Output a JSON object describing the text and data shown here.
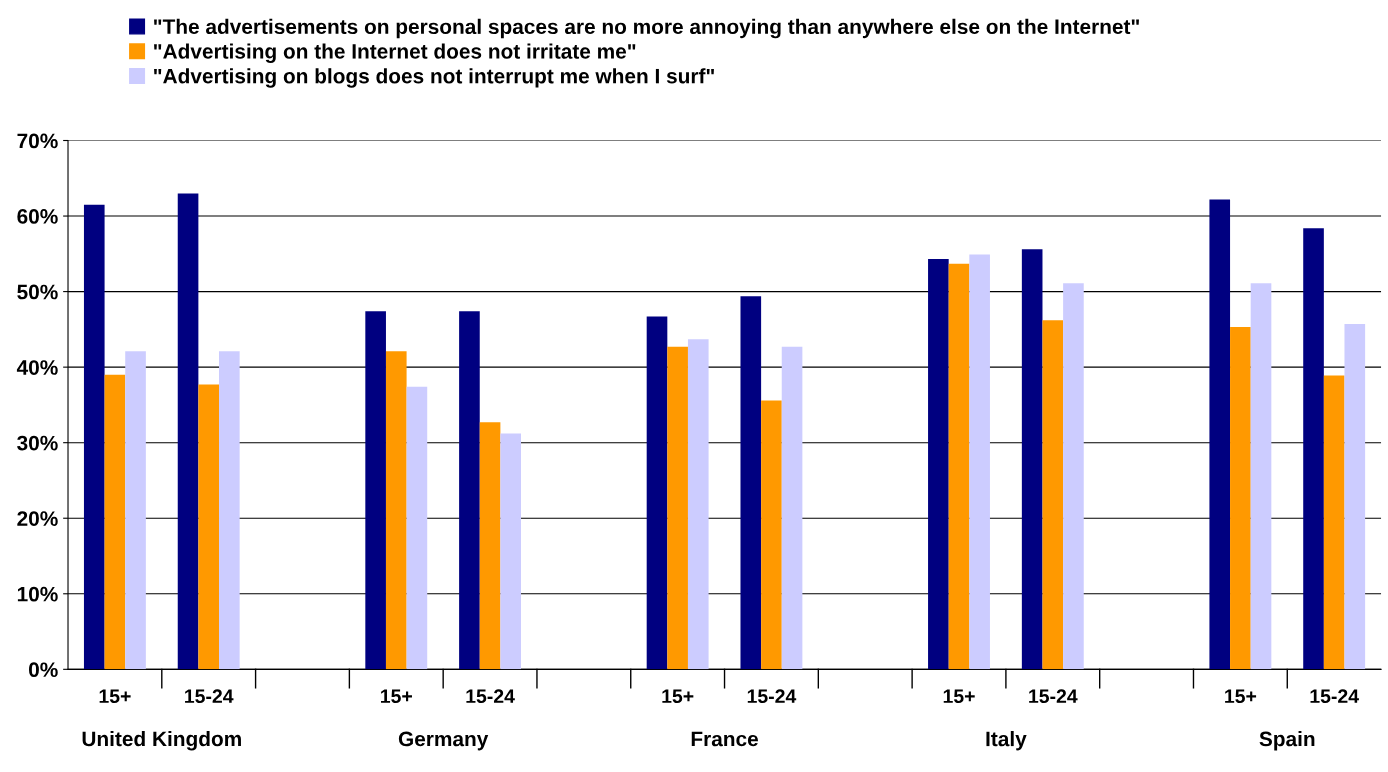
{
  "chart_data": {
    "type": "bar",
    "categories": [
      "15+",
      "15-24",
      null,
      "15+",
      "15-24",
      null,
      "15+",
      "15-24",
      null,
      "15+",
      "15-24",
      null,
      "15+",
      "15-24"
    ],
    "series": [
      {
        "name": "\"The advertisements on personal spaces are no more annoying than anywhere else on the Internet\"",
        "color": "#000080",
        "values": [
          61.5,
          63.0,
          null,
          47.4,
          47.4,
          null,
          46.7,
          49.4,
          null,
          54.3,
          55.6,
          null,
          62.2,
          58.4
        ]
      },
      {
        "name": "\"Advertising on the Internet does not irritate me\"",
        "color": "#ff9900",
        "values": [
          39.0,
          37.7,
          null,
          42.1,
          32.7,
          null,
          42.7,
          35.6,
          null,
          53.7,
          46.2,
          null,
          45.3,
          38.9
        ]
      },
      {
        "name": "\"Advertising on blogs does not interrupt me when I surf\"",
        "color": "#ccccff",
        "values": [
          42.1,
          42.1,
          null,
          37.4,
          31.2,
          null,
          43.7,
          42.7,
          null,
          54.9,
          51.1,
          null,
          51.1,
          45.7
        ]
      }
    ],
    "annotations": [
      "United Kingdom",
      "Germany",
      "France",
      "Italy",
      "Spain"
    ],
    "ylim": [
      0,
      70
    ],
    "yticks": [
      {
        "value": 0,
        "label": "0%"
      },
      {
        "value": 10,
        "label": "10%"
      },
      {
        "value": 20,
        "label": "20%"
      },
      {
        "value": 30,
        "label": "30%"
      },
      {
        "value": 40,
        "label": "40%"
      },
      {
        "value": 50,
        "label": "50%"
      },
      {
        "value": 60,
        "label": "60%"
      },
      {
        "value": 70,
        "label": "70%"
      }
    ],
    "grid": "y",
    "legend": "top left"
  }
}
